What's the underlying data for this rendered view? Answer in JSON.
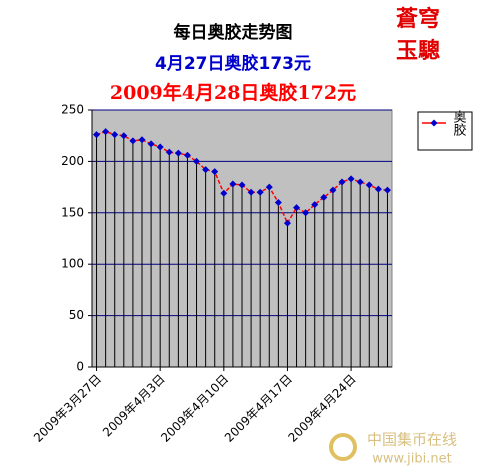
{
  "chart_data": {
    "type": "line",
    "title": "每日奥胶走势图",
    "subtitle": "4月27日奥胶173元",
    "subtitle2": "2009年4月28日奥胶172元",
    "stamp": [
      "蒼穹",
      "玉驄"
    ],
    "watermark": {
      "text": "中国集币在线",
      "url": "www.jibi.net"
    },
    "categories": [
      "2009年3月27日",
      null,
      null,
      null,
      null,
      null,
      null,
      "2009年4月3日",
      null,
      null,
      null,
      null,
      null,
      null,
      "2009年4月10日",
      null,
      null,
      null,
      null,
      null,
      null,
      "2009年4月17日",
      null,
      null,
      null,
      null,
      null,
      null,
      "2009年4月24日",
      null,
      null,
      null,
      null
    ],
    "series": [
      {
        "name": "奥胶",
        "color": "#ff0000",
        "marker_color": "#0000cc",
        "values": [
          226,
          229,
          226,
          225,
          220,
          221,
          217,
          214,
          209,
          208,
          206,
          200,
          192,
          190,
          169,
          178,
          177,
          170,
          170,
          175,
          160,
          140,
          155,
          150,
          158,
          165,
          172,
          180,
          183,
          180,
          177,
          173,
          172
        ]
      }
    ],
    "ylim": [
      0,
      250
    ],
    "yticks": [
      0,
      50,
      100,
      150,
      200,
      250
    ],
    "grid": true,
    "legend": "right"
  }
}
